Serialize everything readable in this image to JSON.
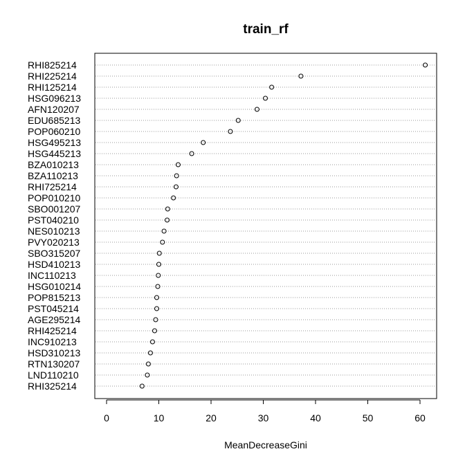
{
  "chart_data": {
    "type": "scatter",
    "subtype": "dotchart",
    "title": "train_rf",
    "xlabel": "MeanDecreaseGini",
    "ylabel": "",
    "xlim": [
      -2,
      63
    ],
    "xticks": [
      0,
      10,
      20,
      30,
      40,
      50,
      60
    ],
    "grid": "horizontal dotted",
    "marker": "open-circle",
    "categories": [
      "RHI825214",
      "RHI225214",
      "RHI125214",
      "HSG096213",
      "AFN120207",
      "EDU685213",
      "POP060210",
      "HSG495213",
      "HSG445213",
      "BZA010213",
      "BZA110213",
      "RHI725214",
      "POP010210",
      "SBO001207",
      "PST040210",
      "NES010213",
      "PVY020213",
      "SBO315207",
      "HSD410213",
      "INC110213",
      "HSG010214",
      "POP815213",
      "PST045214",
      "AGE295214",
      "RHI425214",
      "INC910213",
      "HSD310213",
      "RTN130207",
      "LND110210",
      "RHI325214"
    ],
    "values": [
      61.0,
      37.2,
      31.6,
      30.4,
      28.8,
      25.2,
      23.7,
      18.5,
      16.3,
      13.7,
      13.4,
      13.3,
      12.8,
      11.7,
      11.6,
      11.0,
      10.7,
      10.1,
      10.0,
      9.9,
      9.8,
      9.6,
      9.6,
      9.4,
      9.2,
      8.8,
      8.4,
      8.0,
      7.8,
      6.8
    ]
  }
}
